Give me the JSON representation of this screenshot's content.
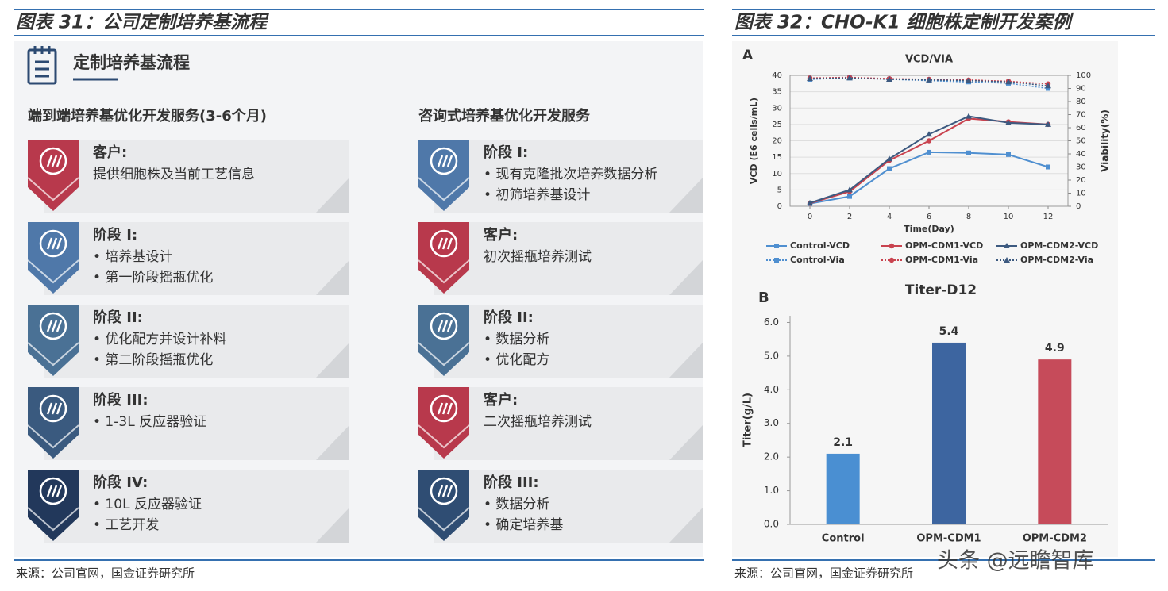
{
  "figure31": {
    "title": "图表 31：公司定制培养基流程",
    "header": "定制培养基流程",
    "columns": [
      {
        "heading": "端到端培养基优化开发服务(3-6个月)",
        "steps": [
          {
            "title": "客户:",
            "lines": [
              "提供细胞株及当前工艺信息"
            ],
            "color": "#b8394c"
          },
          {
            "title": "阶段 I:",
            "lines": [
              "• 培养基设计",
              "• 第一阶段摇瓶优化"
            ],
            "color": "#4f78a9"
          },
          {
            "title": "阶段 II:",
            "lines": [
              "• 优化配方并设计补料",
              "• 第二阶段摇瓶优化"
            ],
            "color": "#4a7195"
          },
          {
            "title": "阶段 III:",
            "lines": [
              "• 1-3L 反应器验证"
            ],
            "color": "#3a5a7f"
          },
          {
            "title": "阶段 IV:",
            "lines": [
              "• 10L 反应器验证",
              "• 工艺开发"
            ],
            "color": "#22385b"
          }
        ]
      },
      {
        "heading": "咨询式培养基优化开发服务",
        "steps": [
          {
            "title": "阶段 I:",
            "lines": [
              "• 现有克隆批次培养数据分析",
              "• 初筛培养基设计"
            ],
            "color": "#4f78a9"
          },
          {
            "title": "客户:",
            "lines": [
              "初次摇瓶培养测试"
            ],
            "color": "#b8394c"
          },
          {
            "title": "阶段 II:",
            "lines": [
              "• 数据分析",
              "• 优化配方"
            ],
            "color": "#4a7195"
          },
          {
            "title": "客户:",
            "lines": [
              "二次摇瓶培养测试"
            ],
            "color": "#b8394c"
          },
          {
            "title": "阶段 III:",
            "lines": [
              "• 数据分析",
              "• 确定培养基"
            ],
            "color": "#2f4d73"
          }
        ]
      }
    ]
  },
  "figure32": {
    "title": "图表 32：CHO-K1 细胞株定制开发案例"
  },
  "chart_data": [
    {
      "type": "line",
      "panel_label": "A",
      "title": "VCD/VIA",
      "x_label": "Time(Day)",
      "y_label": "VCD (E6 cells/mL)",
      "y2_label": "Viability(%)",
      "x": [
        0,
        2,
        4,
        6,
        8,
        10,
        12
      ],
      "xlim": [
        -1,
        13
      ],
      "xticks": [
        0,
        2,
        4,
        6,
        8,
        10,
        12
      ],
      "ylim": [
        0,
        40
      ],
      "yticks": [
        0,
        5,
        10,
        15,
        20,
        25,
        30,
        35,
        40
      ],
      "y2lim": [
        0,
        100
      ],
      "y2ticks": [
        0,
        10,
        20,
        30,
        40,
        50,
        60,
        70,
        80,
        90,
        100
      ],
      "grid": true,
      "series": [
        {
          "name": "Control-VCD",
          "color": "#4f8fd0",
          "marker": "square",
          "dash": false,
          "values": [
            0.8,
            3,
            11.5,
            16.5,
            16.3,
            15.8,
            12
          ]
        },
        {
          "name": "OPM-CDM1-VCD",
          "color": "#c9434f",
          "marker": "circle",
          "dash": false,
          "values": [
            0.9,
            4.5,
            14,
            20,
            26.8,
            25.8,
            25
          ]
        },
        {
          "name": "OPM-CDM2-VCD",
          "color": "#3d5a80",
          "marker": "triangle",
          "dash": false,
          "values": [
            1,
            5,
            14.5,
            22,
            27.5,
            25.5,
            25
          ]
        },
        {
          "name": "Control-Via",
          "color": "#4f8fd0",
          "marker": "square",
          "dash": true,
          "axis": "y2",
          "values": [
            97,
            98,
            97,
            96,
            95,
            94,
            90
          ]
        },
        {
          "name": "OPM-CDM1-Via",
          "color": "#c9434f",
          "marker": "circle",
          "dash": true,
          "axis": "y2",
          "values": [
            98,
            98.5,
            97.5,
            97,
            96.5,
            95.5,
            93.5
          ]
        },
        {
          "name": "OPM-CDM2-Via",
          "color": "#3d5a80",
          "marker": "triangle",
          "dash": true,
          "axis": "y2",
          "values": [
            97.5,
            98,
            97,
            96.5,
            96,
            95,
            92
          ]
        }
      ]
    },
    {
      "type": "bar",
      "panel_label": "B",
      "title": "Titer-D12",
      "y_label": "Titer(g/L)",
      "categories": [
        "Control",
        "OPM-CDM1",
        "OPM-CDM2"
      ],
      "values": [
        2.1,
        5.4,
        4.9
      ],
      "colors": [
        "#4a8fd2",
        "#3d65a0",
        "#c64b5a"
      ],
      "ylim": [
        0,
        6.2
      ],
      "yticks": [
        {
          "value": 0,
          "label": "0.0"
        },
        {
          "value": 1,
          "label": "1.0"
        },
        {
          "value": 2,
          "label": "2.0"
        },
        {
          "value": 3,
          "label": "3.0"
        },
        {
          "value": 4,
          "label": "4.0"
        },
        {
          "value": 5,
          "label": "5.0"
        },
        {
          "value": 6,
          "label": "6.0"
        }
      ],
      "grid": false
    }
  ],
  "sources": [
    "来源：公司官网，国金证券研究所",
    "来源：公司官网，国金证券研究所"
  ],
  "watermark": "头条 @远瞻智库"
}
